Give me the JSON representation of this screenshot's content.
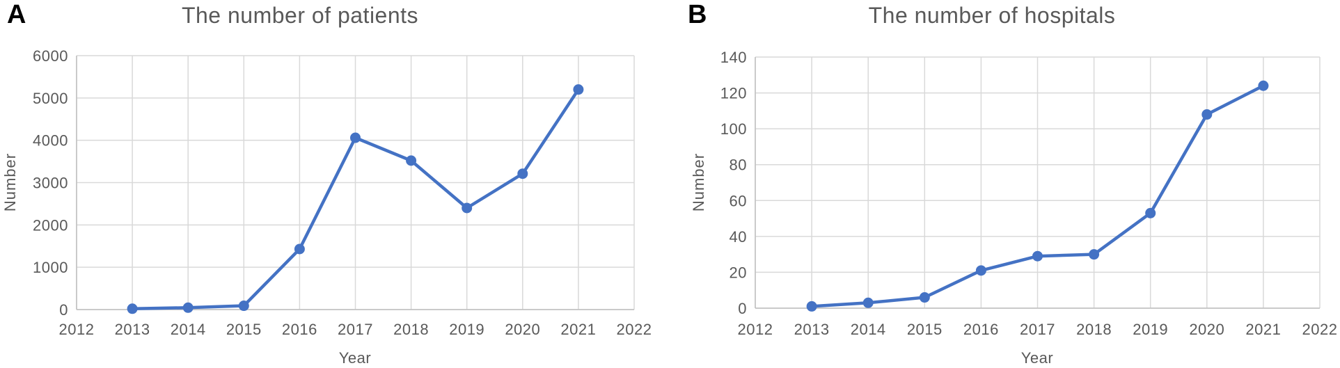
{
  "figure": {
    "panels": [
      {
        "letter": "A"
      },
      {
        "letter": "B"
      }
    ]
  },
  "colors": {
    "line": "#4472C4",
    "marker": "#4472C4",
    "gridline": "#D9D9D9",
    "axis_line": "#BFBFBF",
    "text": "#595959",
    "panel_letter": "#000000",
    "background": "#FFFFFF"
  },
  "chart_data": [
    {
      "type": "line",
      "title": "The number of patients",
      "xlabel": "Year",
      "ylabel": "Number",
      "x": [
        2013,
        2014,
        2015,
        2016,
        2017,
        2018,
        2019,
        2020,
        2021
      ],
      "values": [
        20,
        45,
        90,
        1430,
        4060,
        3520,
        2400,
        3210,
        5200
      ],
      "xlim": [
        2012,
        2022
      ],
      "ylim": [
        0,
        6000
      ],
      "x_tick_step": 1,
      "y_tick_step": 1000,
      "x_tick_labels": [
        "2012",
        "2013",
        "2014",
        "2015",
        "2016",
        "2017",
        "2018",
        "2019",
        "2020",
        "2021",
        "2022"
      ],
      "y_tick_labels": [
        "0",
        "1000",
        "2000",
        "3000",
        "4000",
        "5000",
        "6000"
      ],
      "grid": true,
      "legend": "none",
      "marker": "circle"
    },
    {
      "type": "line",
      "title": "The number of hospitals",
      "xlabel": "Year",
      "ylabel": "Number",
      "x": [
        2013,
        2014,
        2015,
        2016,
        2017,
        2018,
        2019,
        2020,
        2021
      ],
      "values": [
        1,
        3,
        6,
        21,
        29,
        30,
        53,
        108,
        124
      ],
      "xlim": [
        2012,
        2022
      ],
      "ylim": [
        0,
        140
      ],
      "x_tick_step": 1,
      "y_tick_step": 20,
      "x_tick_labels": [
        "2012",
        "2013",
        "2014",
        "2015",
        "2016",
        "2017",
        "2018",
        "2019",
        "2020",
        "2021",
        "2022"
      ],
      "y_tick_labels": [
        "0",
        "20",
        "40",
        "60",
        "80",
        "100",
        "120",
        "140"
      ],
      "grid": true,
      "legend": "none",
      "marker": "circle"
    }
  ]
}
